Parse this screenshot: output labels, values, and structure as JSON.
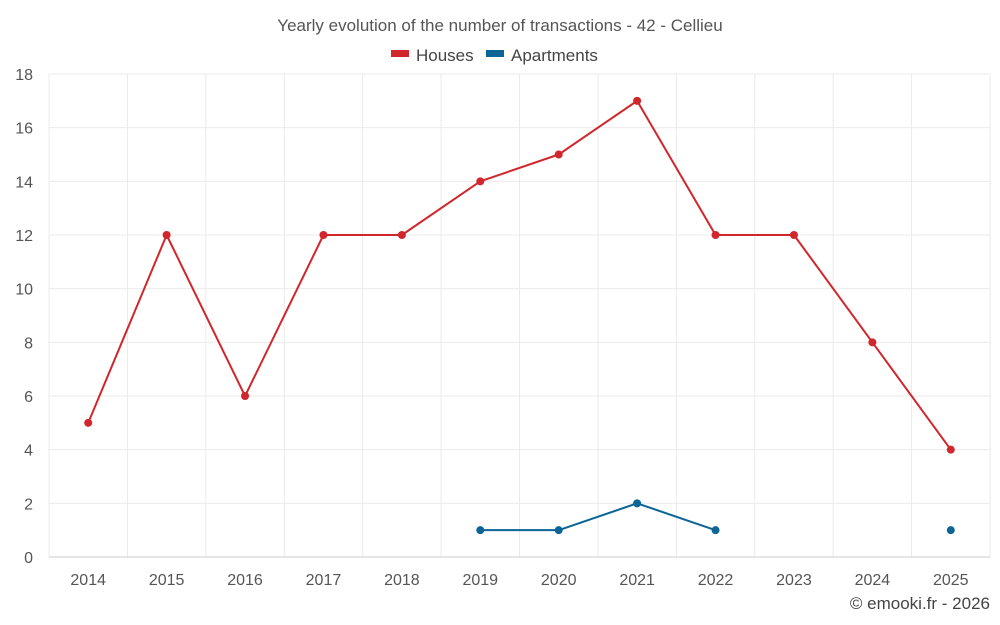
{
  "chart_data": {
    "type": "line",
    "title": "Yearly evolution of the number of transactions - 42 - Cellieu",
    "categories": [
      "2014",
      "2015",
      "2016",
      "2017",
      "2018",
      "2019",
      "2020",
      "2021",
      "2022",
      "2023",
      "2024",
      "2025"
    ],
    "series": [
      {
        "name": "Houses",
        "color": "#d0262c",
        "values": [
          5,
          12,
          6,
          12,
          12,
          14,
          15,
          17,
          12,
          12,
          8,
          4
        ]
      },
      {
        "name": "Apartments",
        "color": "#0a6496",
        "values": [
          null,
          null,
          null,
          null,
          null,
          1,
          1,
          2,
          1,
          null,
          null,
          1
        ]
      }
    ],
    "ylim": [
      0,
      18
    ],
    "yticks": [
      0,
      2,
      4,
      6,
      8,
      10,
      12,
      14,
      16,
      18
    ],
    "ytick_labels": [
      "0",
      "2",
      "4",
      "6",
      "8",
      "10",
      "12",
      "14",
      "16",
      "18"
    ],
    "xlabel": "",
    "ylabel": "",
    "grid": true,
    "legend_position": "top-center"
  },
  "credit": "© emooki.fr - 2026"
}
